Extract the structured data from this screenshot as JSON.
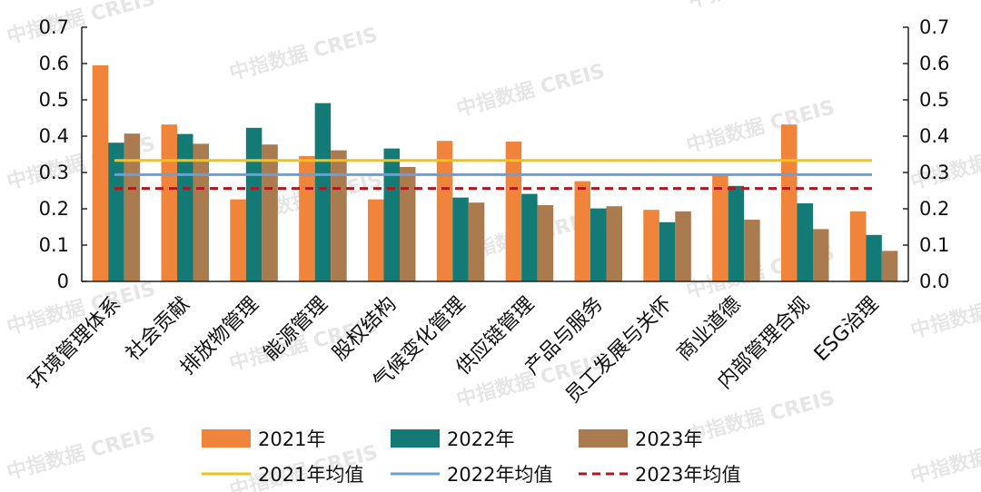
{
  "chart_data": {
    "type": "bar",
    "categories": [
      "环境管理体系",
      "社会贡献",
      "排放物管理",
      "能源管理",
      "股权结构",
      "气候变化管理",
      "供应链管理",
      "产品与服务",
      "员工发展与关怀",
      "商业道德",
      "内部管理合规",
      "ESG治理"
    ],
    "series": [
      {
        "name": "2021年",
        "color": "#f0843a",
        "values": [
          0.595,
          0.432,
          0.226,
          0.345,
          0.226,
          0.387,
          0.385,
          0.276,
          0.197,
          0.292,
          0.432,
          0.193
        ]
      },
      {
        "name": "2022年",
        "color": "#137a76",
        "values": [
          0.382,
          0.406,
          0.423,
          0.491,
          0.366,
          0.231,
          0.241,
          0.201,
          0.163,
          0.263,
          0.215,
          0.128
        ]
      },
      {
        "name": "2023年",
        "color": "#a97b4e",
        "values": [
          0.407,
          0.379,
          0.377,
          0.361,
          0.315,
          0.217,
          0.21,
          0.207,
          0.193,
          0.17,
          0.144,
          0.084
        ]
      }
    ],
    "averages": [
      {
        "name": "2021年均值",
        "color": "#f2c21b",
        "style": "solid",
        "value": 0.333
      },
      {
        "name": "2022年均值",
        "color": "#6a9fdc",
        "style": "solid",
        "value": 0.294
      },
      {
        "name": "2023年均值",
        "color": "#b3161f",
        "style": "dashed",
        "value": 0.256
      }
    ],
    "ylim": [
      0,
      0.7
    ],
    "yticks": [
      "0",
      "0.1",
      "0.2",
      "0.3",
      "0.4",
      "0.5",
      "0.6",
      "0.7"
    ],
    "y2ticks": [
      "0.0",
      "0.1",
      "0.2",
      "0.3",
      "0.4",
      "0.5",
      "0.6",
      "0.7"
    ],
    "grid": false,
    "legend_position": "bottom"
  },
  "watermark_text": "中指数据 CREIS"
}
